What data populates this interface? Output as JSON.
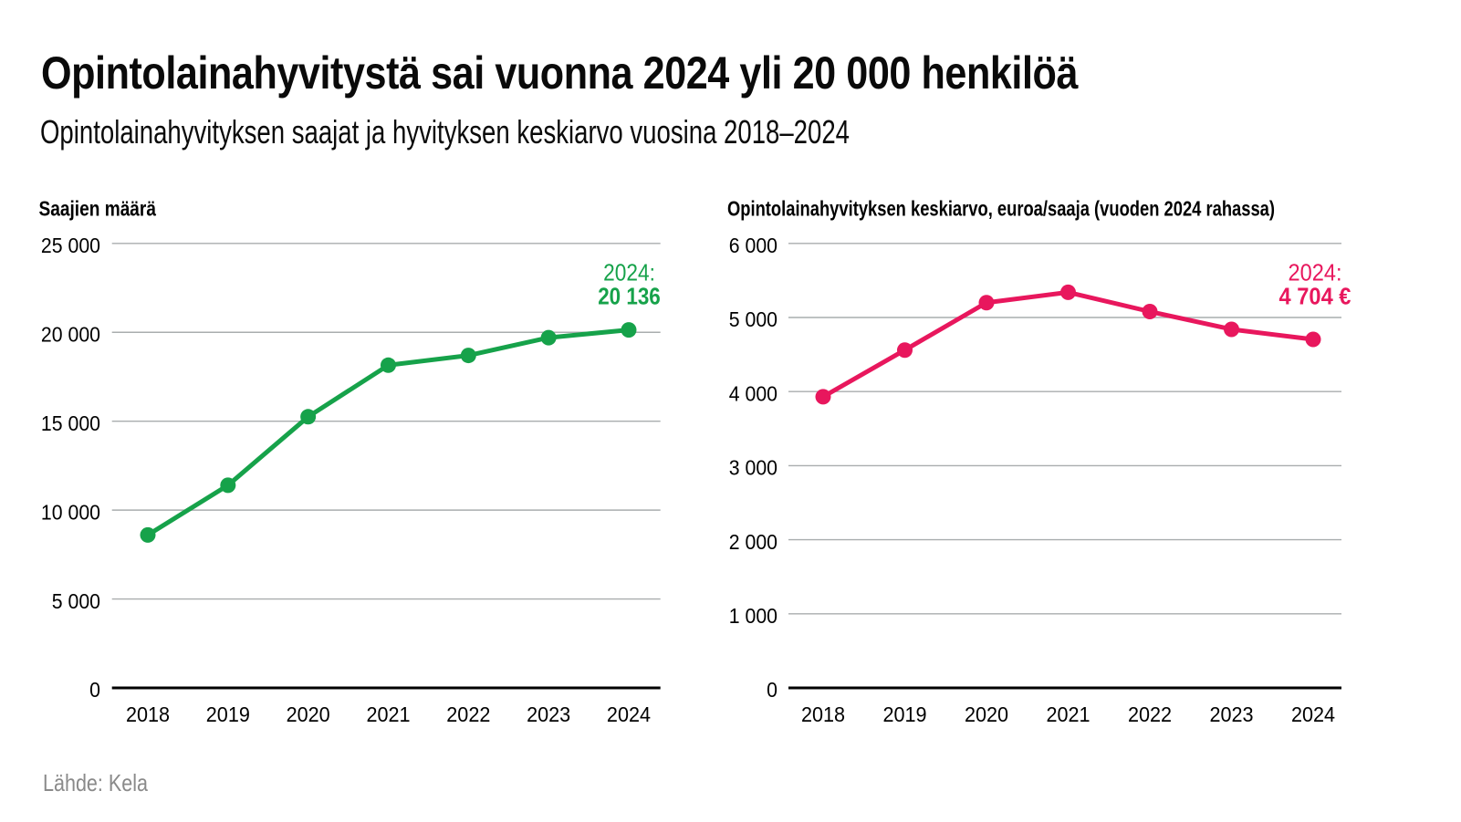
{
  "page": {
    "title": "Opintolainahyvitystä sai vuonna 2024 yli 20 000 henkilöä",
    "subtitle": "Opintolainahyvityksen saajat ja hyvityksen keskiarvo vuosina 2018–2024",
    "source": "Lähde: Kela"
  },
  "colors": {
    "green": "#16a24a",
    "pink": "#e8175d",
    "grid": "#a9adae",
    "axis": "#000000",
    "text": "#000000",
    "muted": "#8a8a8a"
  },
  "chart_data": [
    {
      "type": "line",
      "title": "Saajien määrä",
      "x": [
        2018,
        2019,
        2020,
        2021,
        2022,
        2023,
        2024
      ],
      "values": [
        8600,
        11400,
        15250,
        18150,
        18700,
        19700,
        20136
      ],
      "ylim": [
        0,
        25000
      ],
      "ytick_step": 5000,
      "ytick_labels": [
        "0",
        "5 000",
        "10 000",
        "15 000",
        "20 000",
        "25 000"
      ],
      "grid": true,
      "line_color": "#16a24a",
      "annotation": {
        "line1": "2024:",
        "line2": "20 136"
      }
    },
    {
      "type": "line",
      "title": "Opintolainahyvityksen keskiarvo, euroa/saaja (vuoden 2024 rahassa)",
      "x": [
        2018,
        2019,
        2020,
        2021,
        2022,
        2023,
        2024
      ],
      "values": [
        3930,
        4560,
        5200,
        5340,
        5080,
        4840,
        4704
      ],
      "ylim": [
        0,
        6000
      ],
      "ytick_step": 1000,
      "ytick_labels": [
        "0",
        "1 000",
        "2 000",
        "3 000",
        "4 000",
        "5 000",
        "6 000"
      ],
      "grid": true,
      "line_color": "#e8175d",
      "annotation": {
        "line1": "2024:",
        "line2": "4 704 €"
      }
    }
  ]
}
